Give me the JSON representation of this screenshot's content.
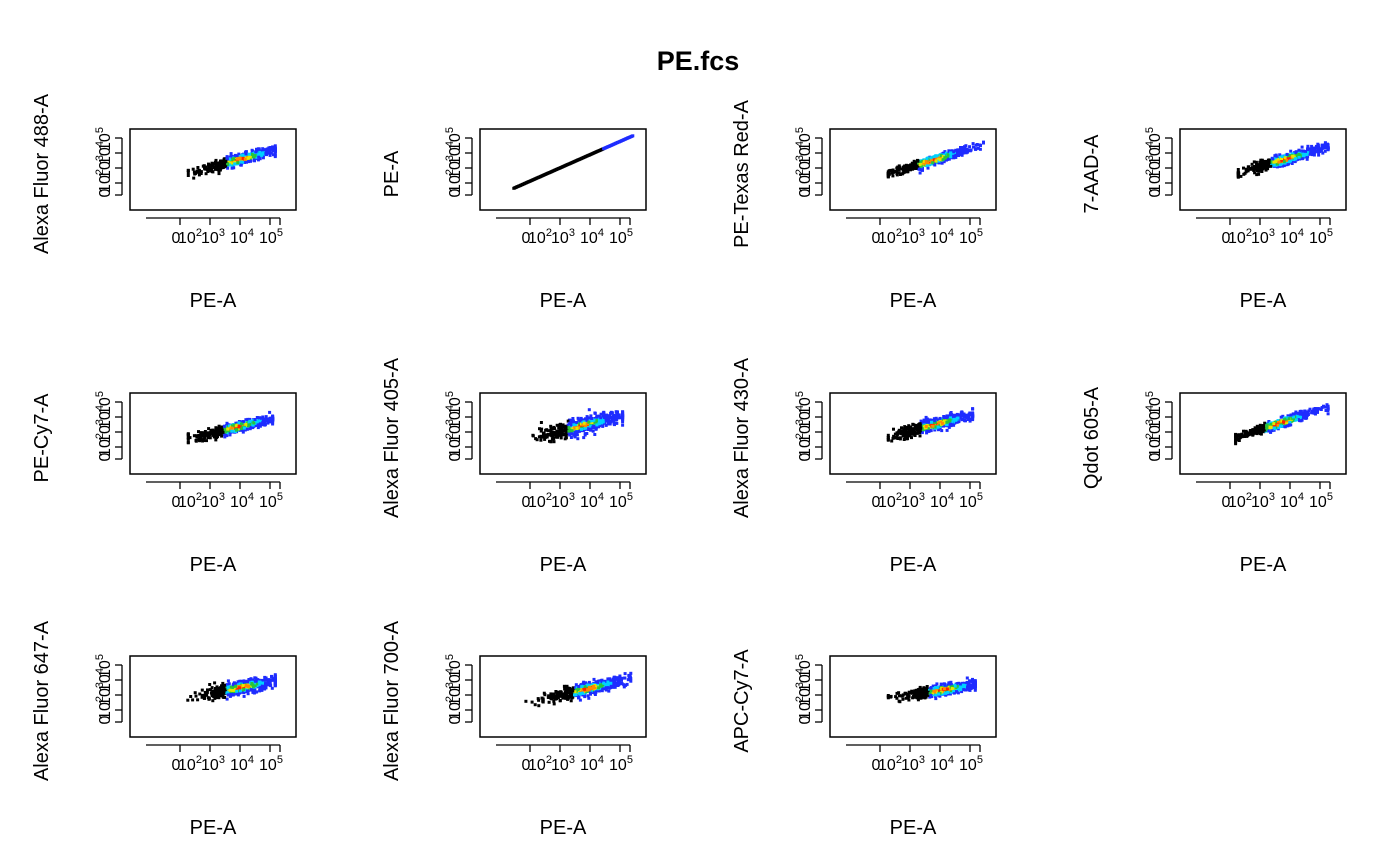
{
  "figure": {
    "title": "PE.fcs"
  },
  "chart_data": [
    {
      "type": "heatmap",
      "title": "",
      "xlabel": "PE-A",
      "ylabel": "Alexa Fluor 488-A",
      "x_ticks": [
        "0",
        "10^2",
        "10^3",
        "10^4",
        "10^5"
      ],
      "y_ticks": [
        "0",
        "10^2",
        "10^3",
        "10^4",
        "10^5"
      ],
      "scale": "biexponential",
      "xlim": [
        0,
        100000
      ],
      "ylim": [
        0,
        100000
      ],
      "grid": false,
      "colors": [
        "#000000",
        "#1e2cff",
        "#00d0ff",
        "#27c43a",
        "#e6e600",
        "#ff8a00",
        "#ff1e00"
      ],
      "x_range_decades": [
        1.5,
        4.7
      ],
      "peak_x_decade": 3.4,
      "peak_y_decade": 3.0,
      "slope": 0.6,
      "spread": 0.35
    },
    {
      "type": "heatmap",
      "title": "",
      "xlabel": "PE-A",
      "ylabel": "PE-A",
      "x_ticks": [
        "0",
        "10^2",
        "10^3",
        "10^4",
        "10^5"
      ],
      "y_ticks": [
        "0",
        "10^2",
        "10^3",
        "10^4",
        "10^5"
      ],
      "scale": "biexponential",
      "xlim": [
        0,
        100000
      ],
      "ylim": [
        0,
        100000
      ],
      "grid": false,
      "colors": [
        "#000000",
        "#1e2cff",
        "#00d0ff",
        "#27c43a",
        "#e6e600",
        "#ff8a00",
        "#ff1e00"
      ],
      "x_range_decades": [
        0.6,
        5.0
      ],
      "peak_x_decade": 3.0,
      "peak_y_decade": 3.0,
      "slope": 1.0,
      "spread": 0.0
    },
    {
      "type": "heatmap",
      "title": "",
      "xlabel": "PE-A",
      "ylabel": "PE-Texas Red-A",
      "x_ticks": [
        "0",
        "10^2",
        "10^3",
        "10^4",
        "10^5"
      ],
      "y_ticks": [
        "0",
        "10^2",
        "10^3",
        "10^4",
        "10^5"
      ],
      "scale": "biexponential",
      "xlim": [
        0,
        100000
      ],
      "ylim": [
        0,
        100000
      ],
      "grid": false,
      "colors": [
        "#000000",
        "#1e2cff",
        "#00d0ff",
        "#27c43a",
        "#e6e600",
        "#ff8a00",
        "#ff1e00"
      ],
      "x_range_decades": [
        1.5,
        5.0
      ],
      "peak_x_decade": 3.1,
      "peak_y_decade": 2.9,
      "slope": 0.7,
      "spread": 0.3
    },
    {
      "type": "heatmap",
      "title": "",
      "xlabel": "PE-A",
      "ylabel": "7-AAD-A",
      "x_ticks": [
        "0",
        "10^2",
        "10^3",
        "10^4",
        "10^5"
      ],
      "y_ticks": [
        "0",
        "10^2",
        "10^3",
        "10^4",
        "10^5"
      ],
      "scale": "biexponential",
      "xlim": [
        0,
        100000
      ],
      "ylim": [
        0,
        100000
      ],
      "grid": false,
      "colors": [
        "#000000",
        "#1e2cff",
        "#00d0ff",
        "#27c43a",
        "#e6e600",
        "#ff8a00",
        "#ff1e00"
      ],
      "x_range_decades": [
        1.5,
        4.8
      ],
      "peak_x_decade": 3.2,
      "peak_y_decade": 3.0,
      "slope": 0.65,
      "spread": 0.35
    },
    {
      "type": "heatmap",
      "title": "",
      "xlabel": "PE-A",
      "ylabel": "PE-Cy7-A",
      "x_ticks": [
        "0",
        "10^2",
        "10^3",
        "10^4",
        "10^5"
      ],
      "y_ticks": [
        "0",
        "10^2",
        "10^3",
        "10^4",
        "10^5"
      ],
      "scale": "biexponential",
      "xlim": [
        0,
        100000
      ],
      "ylim": [
        0,
        100000
      ],
      "grid": false,
      "colors": [
        "#000000",
        "#1e2cff",
        "#00d0ff",
        "#27c43a",
        "#e6e600",
        "#ff8a00",
        "#ff1e00"
      ],
      "x_range_decades": [
        1.5,
        4.6
      ],
      "peak_x_decade": 3.3,
      "peak_y_decade": 2.7,
      "slope": 0.55,
      "spread": 0.35
    },
    {
      "type": "heatmap",
      "title": "",
      "xlabel": "PE-A",
      "ylabel": "Alexa Fluor 405-A",
      "x_ticks": [
        "0",
        "10^2",
        "10^3",
        "10^4",
        "10^5"
      ],
      "y_ticks": [
        "0",
        "10^2",
        "10^3",
        "10^4",
        "10^5"
      ],
      "scale": "biexponential",
      "xlim": [
        0,
        100000
      ],
      "ylim": [
        0,
        100000
      ],
      "grid": false,
      "colors": [
        "#000000",
        "#1e2cff",
        "#00d0ff",
        "#27c43a",
        "#e6e600",
        "#ff8a00",
        "#ff1e00"
      ],
      "x_range_decades": [
        1.3,
        4.6
      ],
      "peak_x_decade": 3.1,
      "peak_y_decade": 2.8,
      "slope": 0.6,
      "spread": 0.55
    },
    {
      "type": "heatmap",
      "title": "",
      "xlabel": "PE-A",
      "ylabel": "Alexa Fluor 430-A",
      "x_ticks": [
        "0",
        "10^2",
        "10^3",
        "10^4",
        "10^5"
      ],
      "y_ticks": [
        "0",
        "10^2",
        "10^3",
        "10^4",
        "10^5"
      ],
      "scale": "biexponential",
      "xlim": [
        0,
        100000
      ],
      "ylim": [
        0,
        100000
      ],
      "grid": false,
      "colors": [
        "#000000",
        "#1e2cff",
        "#00d0ff",
        "#27c43a",
        "#e6e600",
        "#ff8a00",
        "#ff1e00"
      ],
      "x_range_decades": [
        1.5,
        4.6
      ],
      "peak_x_decade": 3.2,
      "peak_y_decade": 2.9,
      "slope": 0.6,
      "spread": 0.4
    },
    {
      "type": "heatmap",
      "title": "",
      "xlabel": "PE-A",
      "ylabel": "Qdot 605-A",
      "x_ticks": [
        "0",
        "10^2",
        "10^3",
        "10^4",
        "10^5"
      ],
      "y_ticks": [
        "0",
        "10^2",
        "10^3",
        "10^4",
        "10^5"
      ],
      "scale": "biexponential",
      "xlim": [
        0,
        100000
      ],
      "ylim": [
        0,
        100000
      ],
      "grid": false,
      "colors": [
        "#000000",
        "#1e2cff",
        "#00d0ff",
        "#27c43a",
        "#e6e600",
        "#ff8a00",
        "#ff1e00"
      ],
      "x_range_decades": [
        1.4,
        4.8
      ],
      "peak_x_decade": 3.0,
      "peak_y_decade": 3.0,
      "slope": 0.75,
      "spread": 0.3
    },
    {
      "type": "heatmap",
      "title": "",
      "xlabel": "PE-A",
      "ylabel": "Alexa Fluor 647-A",
      "x_ticks": [
        "0",
        "10^2",
        "10^3",
        "10^4",
        "10^5"
      ],
      "y_ticks": [
        "0",
        "10^2",
        "10^3",
        "10^4",
        "10^5"
      ],
      "scale": "biexponential",
      "xlim": [
        0,
        100000
      ],
      "ylim": [
        0,
        100000
      ],
      "grid": false,
      "colors": [
        "#000000",
        "#1e2cff",
        "#00d0ff",
        "#27c43a",
        "#e6e600",
        "#ff8a00",
        "#ff1e00"
      ],
      "x_range_decades": [
        0.9,
        4.7
      ],
      "peak_x_decade": 3.4,
      "peak_y_decade": 2.9,
      "slope": 0.45,
      "spread": 0.45
    },
    {
      "type": "heatmap",
      "title": "",
      "xlabel": "PE-A",
      "ylabel": "Alexa Fluor 700-A",
      "x_ticks": [
        "0",
        "10^2",
        "10^3",
        "10^4",
        "10^5"
      ],
      "y_ticks": [
        "0",
        "10^2",
        "10^3",
        "10^4",
        "10^5"
      ],
      "scale": "biexponential",
      "xlim": [
        0,
        100000
      ],
      "ylim": [
        0,
        100000
      ],
      "grid": false,
      "colors": [
        "#000000",
        "#1e2cff",
        "#00d0ff",
        "#27c43a",
        "#e6e600",
        "#ff8a00",
        "#ff1e00"
      ],
      "x_range_decades": [
        0.8,
        4.9
      ],
      "peak_x_decade": 3.3,
      "peak_y_decade": 2.8,
      "slope": 0.55,
      "spread": 0.4
    },
    {
      "type": "heatmap",
      "title": "",
      "xlabel": "PE-A",
      "ylabel": "APC-Cy7-A",
      "x_ticks": [
        "0",
        "10^2",
        "10^3",
        "10^4",
        "10^5"
      ],
      "y_ticks": [
        "0",
        "10^2",
        "10^3",
        "10^4",
        "10^5"
      ],
      "scale": "biexponential",
      "xlim": [
        0,
        100000
      ],
      "ylim": [
        0,
        100000
      ],
      "grid": false,
      "colors": [
        "#000000",
        "#1e2cff",
        "#00d0ff",
        "#27c43a",
        "#e6e600",
        "#ff8a00",
        "#ff1e00"
      ],
      "x_range_decades": [
        1.5,
        4.7
      ],
      "peak_x_decade": 3.5,
      "peak_y_decade": 2.7,
      "slope": 0.35,
      "spread": 0.35
    }
  ]
}
